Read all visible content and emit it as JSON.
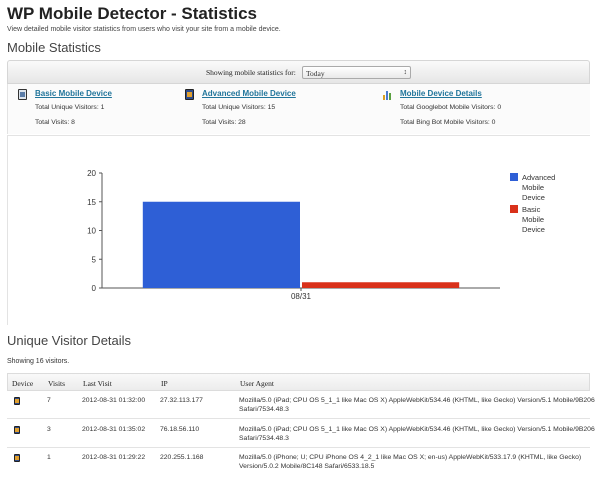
{
  "page": {
    "title": "WP Mobile Detector - Statistics",
    "description": "View detailed mobile visitor statistics from users who visit your site from a mobile device."
  },
  "stats": {
    "section_title": "Mobile Statistics",
    "filter_label": "Showing mobile statistics for:",
    "filter_value": "Today",
    "cards": [
      {
        "icon": "phone-icon",
        "title": "Basic Mobile Device",
        "line1": "Total Unique Visitors: 1",
        "line2": "Total Visits: 8"
      },
      {
        "icon": "tablet-icon",
        "title": "Advanced Mobile Device",
        "line1": "Total Unique Visitors: 15",
        "line2": "Total Visits: 28"
      },
      {
        "icon": "bar-chart-icon",
        "title": "Mobile Device Details",
        "line1": "Total Googlebot Mobile Visitors: 0",
        "line2": "Total Bing Bot Mobile Visitors: 0"
      }
    ]
  },
  "chart_data": {
    "type": "bar",
    "categories": [
      "08/31"
    ],
    "series": [
      {
        "name": "Advanced Mobile Device",
        "values": [
          15
        ],
        "color": "#2e5fd6"
      },
      {
        "name": "Basic Mobile Device",
        "values": [
          1
        ],
        "color": "#d9311a"
      }
    ],
    "ylim": [
      0,
      20
    ],
    "yticks": [
      0,
      5,
      10,
      15,
      20
    ],
    "grid": false,
    "legend": "right"
  },
  "visitors": {
    "section_title": "Unique Visitor Details",
    "showing_text": "Showing 16 visitors.",
    "columns": [
      "Device",
      "Visits",
      "Last Visit",
      "IP",
      "User Agent"
    ],
    "rows": [
      {
        "device_icon": "tablet-icon",
        "visits": "7",
        "last_visit": "2012-08-31 01:32:00",
        "ip": "27.32.113.177",
        "ua1": "Mozilla/5.0 (iPad; CPU OS 5_1_1 like Mac OS X) AppleWebKit/534.46 (KHTML, like Gecko) Version/5.1 Mobile/9B206",
        "ua2": "Safari/7534.48.3"
      },
      {
        "device_icon": "tablet-icon",
        "visits": "3",
        "last_visit": "2012-08-31 01:35:02",
        "ip": "76.18.56.110",
        "ua1": "Mozilla/5.0 (iPad; CPU OS 5_1_1 like Mac OS X) AppleWebKit/534.46 (KHTML, like Gecko) Version/5.1 Mobile/9B206",
        "ua2": "Safari/7534.48.3"
      },
      {
        "device_icon": "tablet-icon",
        "visits": "1",
        "last_visit": "2012-08-31 01:29:22",
        "ip": "220.255.1.168",
        "ua1": "Mozilla/5.0 (iPhone; U; CPU iPhone OS 4_2_1 like Mac OS X; en-us) AppleWebKit/533.17.9 (KHTML, like Gecko)",
        "ua2": "Version/5.0.2 Mobile/8C148 Safari/6533.18.5"
      }
    ]
  }
}
